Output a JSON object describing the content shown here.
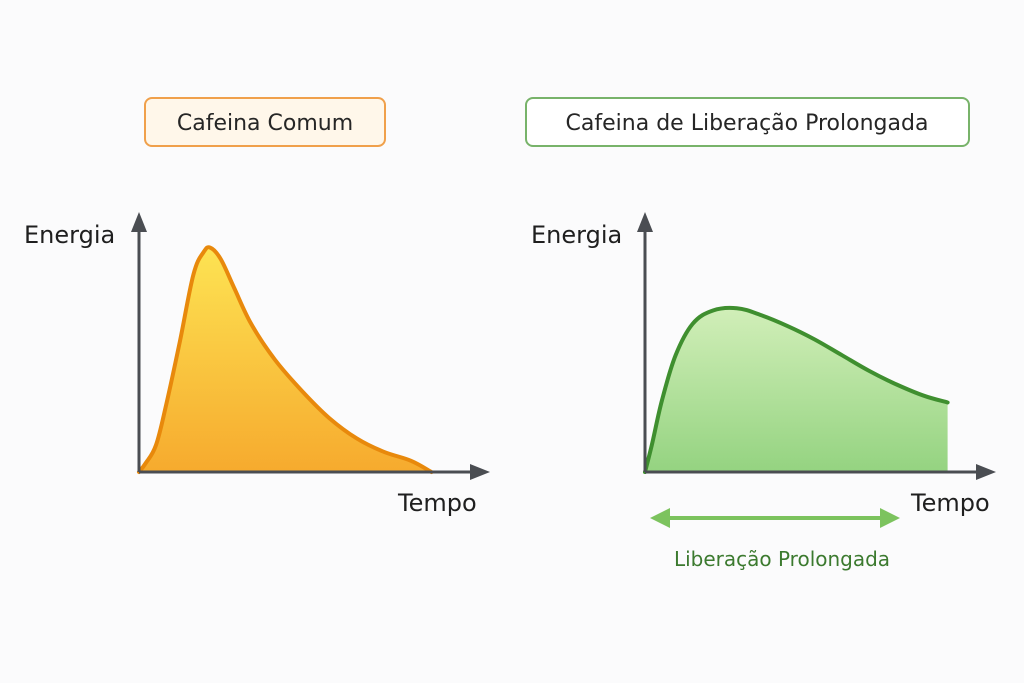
{
  "colors": {
    "background": "#fbfbfc",
    "axis": "#4a4d52",
    "orange_stroke": "#e8890c",
    "orange_fill_top": "#fde24a",
    "orange_fill_bottom": "#f6a623",
    "orange_box_border": "#f0a04b",
    "orange_box_fill": "#fff7ea",
    "green_stroke": "#3f8f2f",
    "green_fill_top": "#cfeeb5",
    "green_fill_bottom": "#8fd17a",
    "green_box_border": "#78b36a",
    "green_box_fill": "#ffffff",
    "range_arrow": "#7cc35e",
    "range_text": "#3c7a2f"
  },
  "chart_data": [
    {
      "type": "area",
      "title": "Cafeina Comum",
      "xlabel": "Tempo",
      "ylabel": "Energia",
      "x": [
        0,
        0.02,
        0.05,
        0.08,
        0.12,
        0.16,
        0.19,
        0.21,
        0.24,
        0.28,
        0.33,
        0.4,
        0.48,
        0.56,
        0.64,
        0.72,
        0.8,
        0.86
      ],
      "y": [
        0,
        0.04,
        0.12,
        0.3,
        0.58,
        0.88,
        0.98,
        1.0,
        0.95,
        0.82,
        0.66,
        0.5,
        0.36,
        0.24,
        0.15,
        0.09,
        0.05,
        0
      ],
      "xlim": [
        0,
        1
      ],
      "ylim": [
        0,
        1.15
      ],
      "grid": false,
      "legend": "none"
    },
    {
      "type": "area",
      "title": "Cafeina de Liberação Prolongada",
      "xlabel": "Tempo",
      "ylabel": "Energia",
      "x": [
        0,
        0.02,
        0.05,
        0.09,
        0.14,
        0.2,
        0.27,
        0.34,
        0.42,
        0.5,
        0.58,
        0.66,
        0.74,
        0.82,
        0.89
      ],
      "y": [
        0,
        0.12,
        0.32,
        0.52,
        0.66,
        0.72,
        0.73,
        0.7,
        0.65,
        0.59,
        0.52,
        0.45,
        0.39,
        0.34,
        0.31
      ],
      "xlim": [
        0,
        1
      ],
      "ylim": [
        0,
        1.15
      ],
      "grid": false,
      "legend": "none",
      "annotation": "Liberação Prolongada"
    }
  ]
}
